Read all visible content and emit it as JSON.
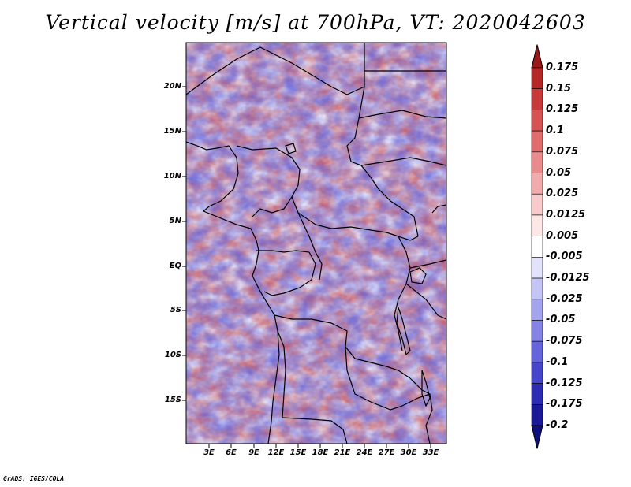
{
  "title": "Vertical velocity [m/s] at 700hPa, VT: 2020042603",
  "lat_labels": [
    "20N",
    "15N",
    "10N",
    "5N",
    "EQ",
    "5S",
    "10S",
    "15S"
  ],
  "lon_labels": [
    "3E",
    "6E",
    "9E",
    "12E",
    "15E",
    "18E",
    "21E",
    "24E",
    "27E",
    "30E",
    "33E"
  ],
  "colorbar": {
    "levels": [
      "0.175",
      "0.15",
      "0.125",
      "0.1",
      "0.075",
      "0.05",
      "0.025",
      "0.0125",
      "0.005",
      "-0.005",
      "-0.0125",
      "-0.025",
      "-0.05",
      "-0.075",
      "-0.1",
      "-0.125",
      "-0.175",
      "-0.2"
    ],
    "colors": [
      "#9c1717",
      "#b52626",
      "#c83a3a",
      "#d65353",
      "#e06c6c",
      "#e98b8b",
      "#f1abab",
      "#f8caca",
      "#fde6e6",
      "#ffffff",
      "#e2e2fb",
      "#c4c4f5",
      "#a3a3ee",
      "#8484e6",
      "#6464db",
      "#4646cd",
      "#2c2cb5",
      "#1a1a98",
      "#0f0f7e"
    ]
  },
  "credit": "GrADS: IGES/COLA"
}
